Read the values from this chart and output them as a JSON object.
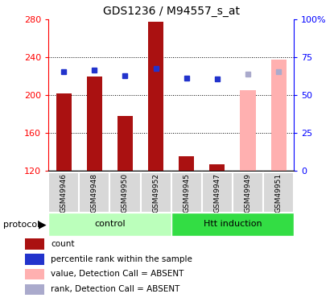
{
  "title": "GDS1236 / M94557_s_at",
  "samples": [
    "GSM49946",
    "GSM49948",
    "GSM49950",
    "GSM49952",
    "GSM49945",
    "GSM49947",
    "GSM49949",
    "GSM49951"
  ],
  "count_values": [
    202,
    220,
    178,
    278,
    135,
    127,
    null,
    null
  ],
  "count_absent_values": [
    null,
    null,
    null,
    null,
    null,
    null,
    205,
    238
  ],
  "rank_values": [
    65.5,
    66.5,
    63.0,
    67.5,
    61.5,
    60.5,
    null,
    null
  ],
  "rank_absent_values": [
    null,
    null,
    null,
    null,
    null,
    null,
    64.0,
    65.5
  ],
  "ylim_left": [
    120,
    280
  ],
  "ylim_right": [
    0,
    100
  ],
  "yticks_left": [
    120,
    160,
    200,
    240,
    280
  ],
  "yticks_right": [
    0,
    25,
    50,
    75,
    100
  ],
  "ytick_labels_right": [
    "0",
    "25",
    "50",
    "75",
    "100%"
  ],
  "count_color": "#aa1111",
  "count_absent_color": "#ffb0b0",
  "rank_color": "#2233cc",
  "rank_absent_color": "#aaaacc",
  "control_color": "#bbffbb",
  "htt_color": "#33dd44",
  "legend_items": [
    {
      "label": "count",
      "color": "#aa1111"
    },
    {
      "label": "percentile rank within the sample",
      "color": "#2233cc"
    },
    {
      "label": "value, Detection Call = ABSENT",
      "color": "#ffb0b0"
    },
    {
      "label": "rank, Detection Call = ABSENT",
      "color": "#aaaacc"
    }
  ]
}
